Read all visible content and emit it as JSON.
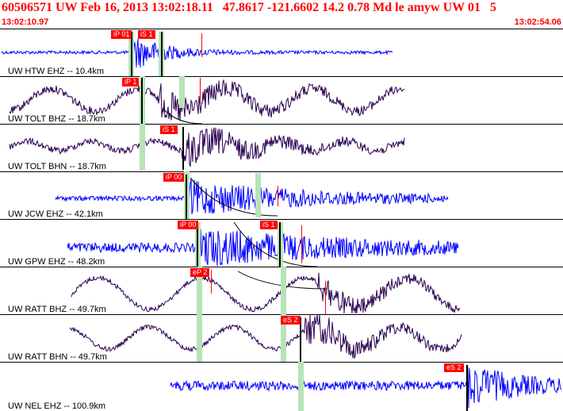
{
  "header": {
    "title": "60506571 UW Feb 16, 2013 13:02:18.11   47.8617 -121.6602 14.2 0.78 Md le amyw UW 01   5",
    "time_start": "13:02:10.97",
    "time_end": "13:02:54.06"
  },
  "colors": {
    "blue_trace": "#0000ff",
    "dark_trace": "#2a0050",
    "pick": "#ff0000",
    "window": "#b7e3b7"
  },
  "panels": [
    {
      "label": "UW HTW EHZ -- 10.4km",
      "picks": [
        {
          "text": "iP 01"
        },
        {
          "text": "iS 1"
        }
      ]
    },
    {
      "label": "UW TOLT BHZ -- 18.7km",
      "picks": [
        {
          "text": "iP 1"
        }
      ]
    },
    {
      "label": "UW TOLT BHN -- 18.7km",
      "picks": [
        {
          "text": "iS 1"
        }
      ]
    },
    {
      "label": "UW JCW EHZ -- 42.1km",
      "picks": [
        {
          "text": "iP 00"
        }
      ]
    },
    {
      "label": "UW GPW EHZ -- 48.2km",
      "picks": [
        {
          "text": "iP 00"
        },
        {
          "text": "iS 1"
        }
      ]
    },
    {
      "label": "UW RATT BHZ -- 49.7km",
      "picks": [
        {
          "text": "eP 2"
        }
      ]
    },
    {
      "label": "UW RATT BHN -- 49.7km",
      "picks": [
        {
          "text": "eS 2"
        }
      ]
    },
    {
      "label": "UW NEL EHZ -- 100.9km",
      "picks": [
        {
          "text": "eS 2"
        }
      ]
    }
  ]
}
